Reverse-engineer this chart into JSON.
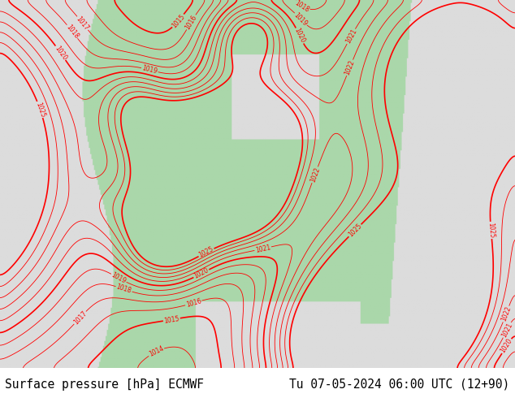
{
  "title_left": "Surface pressure [hPa] ECMWF",
  "title_right": "Tu 07-05-2024 06:00 UTC (12+90)",
  "title_fontsize": 10.5,
  "title_color": "#000000",
  "background_color": "#ffffff",
  "land_color": [
    170,
    215,
    170
  ],
  "ocean_color": [
    220,
    220,
    220
  ],
  "figsize": [
    6.34,
    4.9
  ],
  "dpi": 100
}
